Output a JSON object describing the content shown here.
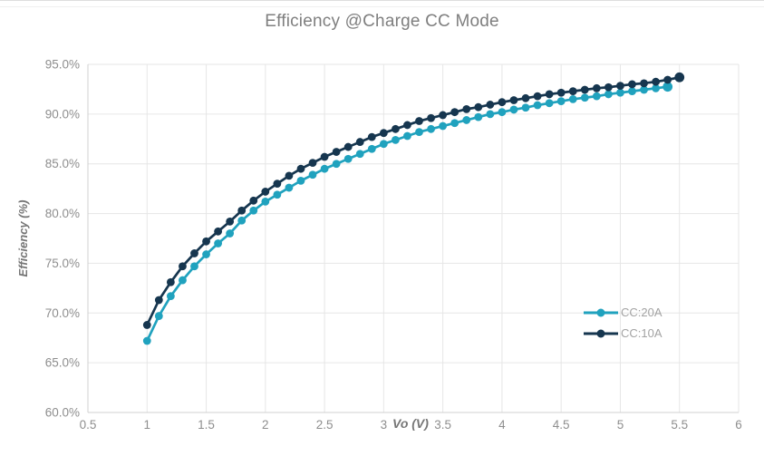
{
  "chart_data": {
    "type": "line",
    "title": "Efficiency @Charge CC Mode",
    "xlabel": "Vo (V)",
    "ylabel": "Efficiency (%)",
    "xlim": [
      0.5,
      6
    ],
    "ylim": [
      60,
      95
    ],
    "x_ticks": [
      0.5,
      1,
      1.5,
      2,
      2.5,
      3,
      3.5,
      4,
      4.5,
      5,
      5.5,
      6
    ],
    "x_tick_labels": [
      "0.5",
      "1",
      "1.5",
      "2",
      "2.5",
      "3",
      "3.5",
      "4",
      "4.5",
      "5",
      "5.5",
      "6"
    ],
    "y_ticks": [
      60,
      65,
      70,
      75,
      80,
      85,
      90,
      95
    ],
    "y_tick_labels": [
      "60.0%",
      "65.0%",
      "70.0%",
      "75.0%",
      "80.0%",
      "85.0%",
      "90.0%",
      "95.0%"
    ],
    "grid": true,
    "legend_position": "inside-right",
    "series": [
      {
        "name": "CC:20A",
        "color": "#20a2be",
        "x": [
          1.0,
          1.1,
          1.2,
          1.3,
          1.4,
          1.5,
          1.6,
          1.7,
          1.8,
          1.9,
          2.0,
          2.1,
          2.2,
          2.3,
          2.4,
          2.5,
          2.6,
          2.7,
          2.8,
          2.9,
          3.0,
          3.1,
          3.2,
          3.3,
          3.4,
          3.5,
          3.6,
          3.7,
          3.8,
          3.9,
          4.0,
          4.1,
          4.2,
          4.3,
          4.4,
          4.5,
          4.6,
          4.7,
          4.8,
          4.9,
          5.0,
          5.1,
          5.2,
          5.3,
          5.4
        ],
        "values": [
          67.2,
          69.7,
          71.7,
          73.3,
          74.7,
          75.9,
          77.0,
          78.0,
          79.3,
          80.3,
          81.2,
          81.9,
          82.6,
          83.3,
          83.9,
          84.5,
          85.0,
          85.5,
          86.0,
          86.5,
          87.0,
          87.4,
          87.8,
          88.2,
          88.5,
          88.8,
          89.1,
          89.4,
          89.7,
          90.0,
          90.2,
          90.45,
          90.65,
          90.9,
          91.1,
          91.3,
          91.5,
          91.65,
          91.8,
          92.0,
          92.15,
          92.3,
          92.45,
          92.6,
          92.75
        ]
      },
      {
        "name": "CC:10A",
        "color": "#16364f",
        "x": [
          1.0,
          1.1,
          1.2,
          1.3,
          1.4,
          1.5,
          1.6,
          1.7,
          1.8,
          1.9,
          2.0,
          2.1,
          2.2,
          2.3,
          2.4,
          2.5,
          2.6,
          2.7,
          2.8,
          2.9,
          3.0,
          3.1,
          3.2,
          3.3,
          3.4,
          3.5,
          3.6,
          3.7,
          3.8,
          3.9,
          4.0,
          4.1,
          4.2,
          4.3,
          4.4,
          4.5,
          4.6,
          4.7,
          4.8,
          4.9,
          5.0,
          5.1,
          5.2,
          5.3,
          5.4,
          5.5
        ],
        "values": [
          68.8,
          71.3,
          73.1,
          74.7,
          76.0,
          77.2,
          78.2,
          79.2,
          80.3,
          81.3,
          82.2,
          83.0,
          83.8,
          84.5,
          85.1,
          85.7,
          86.2,
          86.7,
          87.2,
          87.7,
          88.1,
          88.5,
          88.9,
          89.3,
          89.6,
          89.9,
          90.2,
          90.5,
          90.7,
          90.95,
          91.2,
          91.4,
          91.6,
          91.8,
          92.0,
          92.15,
          92.3,
          92.45,
          92.6,
          92.7,
          92.85,
          93.0,
          93.1,
          93.25,
          93.45,
          93.7
        ]
      }
    ],
    "colors": {
      "gridline": "#e6e6e6",
      "axis_line": "#d0d0d0",
      "tick_text": "#8e8e8e",
      "title_text": "#7f7f7f",
      "axis_title_text": "#757575",
      "legend_text": "#a3a3a3"
    }
  }
}
